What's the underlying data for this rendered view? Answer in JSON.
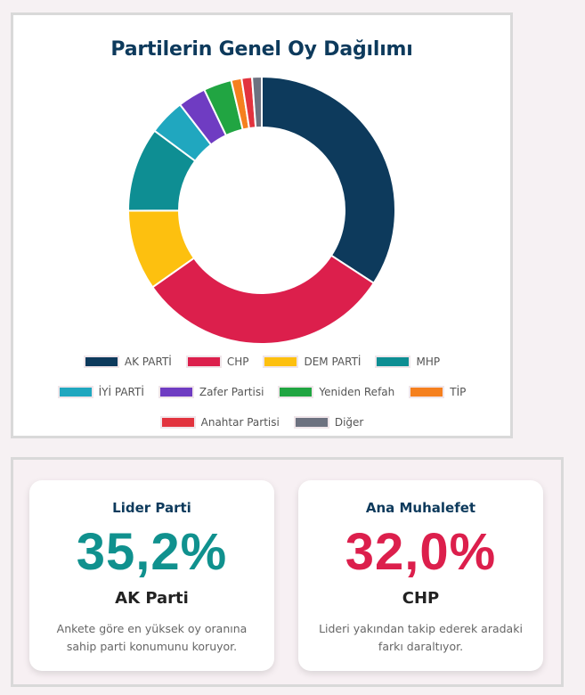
{
  "chart_data": {
    "type": "pie",
    "title": "Partilerin Genel Oy Dağılımı",
    "categories": [
      "AK PARTİ",
      "CHP",
      "DEM PARTİ",
      "MHP",
      "İYİ PARTİ",
      "Zafer Partisi",
      "Yeniden Refah",
      "TİP",
      "Anahtar Partisi",
      "Diğer"
    ],
    "values": [
      35.2,
      32.0,
      10.0,
      10.5,
      4.5,
      3.5,
      3.5,
      1.3,
      1.3,
      1.2
    ],
    "colors": [
      "#0d3a5c",
      "#dc1f4c",
      "#fdc00f",
      "#0e8e93",
      "#20a7bf",
      "#6f3cc2",
      "#21a542",
      "#f5801e",
      "#e2333e",
      "#6d7280"
    ],
    "legend_position": "bottom"
  },
  "stats": {
    "leader": {
      "label": "Lider Parti",
      "value": "35,2%",
      "party": "AK Parti",
      "desc": "Ankete göre en yüksek oy oranına sahip parti konumunu koruyor.",
      "color": "#10918e"
    },
    "opposition": {
      "label": "Ana Muhalefet",
      "value": "32,0%",
      "party": "CHP",
      "desc": "Lideri yakından takip ederek aradaki farkı daraltıyor.",
      "color": "#dc1f4c"
    }
  }
}
